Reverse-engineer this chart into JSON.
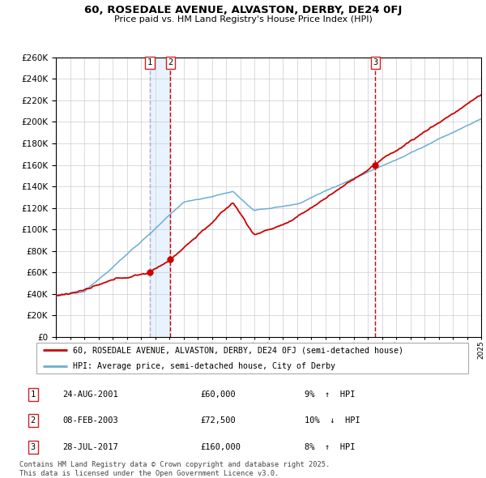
{
  "title": "60, ROSEDALE AVENUE, ALVASTON, DERBY, DE24 0FJ",
  "subtitle": "Price paid vs. HM Land Registry's House Price Index (HPI)",
  "legend_line1": "60, ROSEDALE AVENUE, ALVASTON, DERBY, DE24 0FJ (semi-detached house)",
  "legend_line2": "HPI: Average price, semi-detached house, City of Derby",
  "footnote": "Contains HM Land Registry data © Crown copyright and database right 2025.\nThis data is licensed under the Open Government Licence v3.0.",
  "transactions": [
    {
      "num": 1,
      "date": "24-AUG-2001",
      "price": 60000,
      "pct": "9%",
      "dir": "↑"
    },
    {
      "num": 2,
      "date": "08-FEB-2003",
      "price": 72500,
      "pct": "10%",
      "dir": "↓"
    },
    {
      "num": 3,
      "date": "28-JUL-2017",
      "price": 160000,
      "pct": "8%",
      "dir": "↑"
    }
  ],
  "t1_year": 2001.625,
  "t2_year": 2003.083,
  "t3_year": 2017.542,
  "t1_price": 60000,
  "t2_price": 72500,
  "t3_price": 160000,
  "hpi_color": "#6baed6",
  "price_color": "#cc0000",
  "vline1_color": "#aaaadd",
  "vline2_color": "#cc0000",
  "bg_shade_color": "#ddeeff",
  "ylim_min": 0,
  "ylim_max": 260000,
  "ytick_step": 20000,
  "start_year": 1995,
  "end_year": 2025
}
